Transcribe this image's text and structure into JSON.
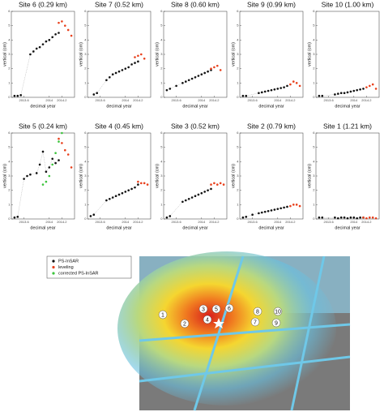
{
  "chart_data": [
    {
      "type": "scatter",
      "title": "Site 6 (0.29 km)",
      "xlabel": "decimal year",
      "ylabel": "vertical (cm)",
      "xlim": [
        2013.4,
        2014.4
      ],
      "ylim": [
        0,
        6
      ],
      "xticks": [
        2013.6,
        2014,
        2014.2
      ],
      "yticks": [
        0,
        1,
        2,
        3,
        4,
        5,
        6
      ],
      "series": [
        {
          "name": "PS-InSAR",
          "color": "#111111",
          "x": [
            2013.45,
            2013.5,
            2013.55,
            2013.7,
            2013.75,
            2013.8,
            2013.85,
            2013.9,
            2013.95,
            2014.0,
            2014.05,
            2014.1,
            2014.15
          ],
          "values": [
            0.1,
            0.1,
            0.15,
            3.0,
            3.2,
            3.4,
            3.5,
            3.7,
            3.9,
            4.0,
            4.2,
            4.4,
            4.5
          ]
        },
        {
          "name": "leveling",
          "color": "#e8401c",
          "x": [
            2014.15,
            2014.2,
            2014.25,
            2014.3,
            2014.35
          ],
          "values": [
            5.2,
            5.3,
            5.0,
            4.7,
            4.3
          ]
        }
      ]
    },
    {
      "type": "scatter",
      "title": "Site 7 (0.52 km)",
      "xlabel": "decimal year",
      "ylabel": "vertical (cm)",
      "xlim": [
        2013.4,
        2014.4
      ],
      "ylim": [
        0,
        6
      ],
      "xticks": [
        2013.6,
        2014,
        2014.2
      ],
      "yticks": [
        0,
        1,
        2,
        3,
        4,
        5,
        6
      ],
      "series": [
        {
          "name": "PS-InSAR",
          "color": "#111111",
          "x": [
            2013.5,
            2013.55,
            2013.7,
            2013.75,
            2013.8,
            2013.85,
            2013.9,
            2013.95,
            2014.0,
            2014.05,
            2014.1,
            2014.15,
            2014.2
          ],
          "values": [
            0.2,
            0.3,
            1.2,
            1.4,
            1.6,
            1.7,
            1.8,
            1.9,
            2.0,
            2.1,
            2.3,
            2.4,
            2.5
          ]
        },
        {
          "name": "leveling",
          "color": "#e8401c",
          "x": [
            2014.15,
            2014.2,
            2014.25,
            2014.3
          ],
          "values": [
            2.8,
            2.9,
            3.0,
            2.7
          ]
        }
      ]
    },
    {
      "type": "scatter",
      "title": "Site 8 (0.60 km)",
      "xlabel": "decimal year",
      "ylabel": "vertical (cm)",
      "xlim": [
        2013.4,
        2014.4
      ],
      "ylim": [
        0,
        6
      ],
      "xticks": [
        2013.6,
        2014,
        2014.2
      ],
      "yticks": [
        0,
        1,
        2,
        3,
        4,
        5,
        6
      ],
      "series": [
        {
          "name": "PS-InSAR",
          "color": "#111111",
          "x": [
            2013.45,
            2013.5,
            2013.6,
            2013.7,
            2013.75,
            2013.8,
            2013.85,
            2013.9,
            2013.95,
            2014.0,
            2014.05,
            2014.1,
            2014.15
          ],
          "values": [
            0.5,
            0.6,
            0.8,
            1.0,
            1.1,
            1.2,
            1.3,
            1.4,
            1.5,
            1.6,
            1.7,
            1.8,
            1.9
          ]
        },
        {
          "name": "leveling",
          "color": "#e8401c",
          "x": [
            2014.15,
            2014.2,
            2014.25,
            2014.3
          ],
          "values": [
            2.0,
            2.1,
            2.2,
            1.9
          ]
        }
      ]
    },
    {
      "type": "scatter",
      "title": "Site 9 (0.99 km)",
      "xlabel": "decimal year",
      "ylabel": "vertical (cm)",
      "xlim": [
        2013.4,
        2014.4
      ],
      "ylim": [
        0,
        6
      ],
      "xticks": [
        2013.6,
        2014,
        2014.2
      ],
      "yticks": [
        0,
        1,
        2,
        3,
        4,
        5,
        6
      ],
      "series": [
        {
          "name": "PS-InSAR",
          "color": "#111111",
          "x": [
            2013.45,
            2013.5,
            2013.7,
            2013.75,
            2013.8,
            2013.85,
            2013.9,
            2013.95,
            2014.0,
            2014.05,
            2014.1,
            2014.15
          ],
          "values": [
            0.1,
            0.1,
            0.3,
            0.35,
            0.4,
            0.45,
            0.5,
            0.55,
            0.6,
            0.65,
            0.7,
            0.8
          ]
        },
        {
          "name": "leveling",
          "color": "#e8401c",
          "x": [
            2014.2,
            2014.25,
            2014.3,
            2014.35
          ],
          "values": [
            0.9,
            1.1,
            1.0,
            0.8
          ]
        }
      ]
    },
    {
      "type": "scatter",
      "title": "Site 10 (1.00 km)",
      "xlabel": "decimal year",
      "ylabel": "vertical (cm)",
      "xlim": [
        2013.4,
        2014.4
      ],
      "ylim": [
        0,
        6
      ],
      "xticks": [
        2013.6,
        2014,
        2014.2
      ],
      "yticks": [
        0,
        1,
        2,
        3,
        4,
        5,
        6
      ],
      "series": [
        {
          "name": "PS-InSAR",
          "color": "#111111",
          "x": [
            2013.45,
            2013.5,
            2013.7,
            2013.75,
            2013.8,
            2013.85,
            2013.9,
            2013.95,
            2014.0,
            2014.05,
            2014.1,
            2014.15
          ],
          "values": [
            0.1,
            0.1,
            0.2,
            0.25,
            0.3,
            0.3,
            0.35,
            0.4,
            0.45,
            0.5,
            0.55,
            0.6
          ]
        },
        {
          "name": "leveling",
          "color": "#e8401c",
          "x": [
            2014.2,
            2014.25,
            2014.3,
            2014.35
          ],
          "values": [
            0.7,
            0.8,
            0.9,
            0.6
          ]
        }
      ]
    },
    {
      "type": "scatter",
      "title": "Site 5 (0.24 km)",
      "xlabel": "decimal year",
      "ylabel": "vertical (cm)",
      "xlim": [
        2013.4,
        2014.4
      ],
      "ylim": [
        0,
        6
      ],
      "xticks": [
        2013.6,
        2014,
        2014.2
      ],
      "yticks": [
        0,
        1,
        2,
        3,
        4,
        5,
        6
      ],
      "series": [
        {
          "name": "PS-InSAR",
          "color": "#111111",
          "x": [
            2013.45,
            2013.5,
            2013.6,
            2013.65,
            2013.7,
            2013.8,
            2013.85,
            2013.9,
            2013.95,
            2014.0,
            2014.05,
            2014.1,
            2014.15
          ],
          "values": [
            0.1,
            0.15,
            2.8,
            3.0,
            3.1,
            3.2,
            3.8,
            4.7,
            3.3,
            3.6,
            4.2,
            3.9,
            4.1
          ]
        },
        {
          "name": "leveling",
          "color": "#e8401c",
          "x": [
            2014.15,
            2014.2,
            2014.25,
            2014.3,
            2014.35
          ],
          "values": [
            5.6,
            5.3,
            4.8,
            4.5,
            3.6
          ]
        },
        {
          "name": "corrected PS-InSAR",
          "color": "#3cc43c",
          "x": [
            2013.9,
            2013.95,
            2014.0,
            2014.05,
            2014.1,
            2014.15,
            2014.2
          ],
          "values": [
            2.4,
            2.6,
            3.0,
            3.8,
            4.6,
            5.4,
            6.0
          ]
        }
      ]
    },
    {
      "type": "scatter",
      "title": "Site 4 (0.45 km)",
      "xlabel": "decimal year",
      "ylabel": "vertical (cm)",
      "xlim": [
        2013.4,
        2014.4
      ],
      "ylim": [
        0,
        6
      ],
      "xticks": [
        2013.6,
        2014,
        2014.2
      ],
      "yticks": [
        0,
        1,
        2,
        3,
        4,
        5,
        6
      ],
      "series": [
        {
          "name": "PS-InSAR",
          "color": "#111111",
          "x": [
            2013.45,
            2013.5,
            2013.7,
            2013.75,
            2013.8,
            2013.85,
            2013.9,
            2013.95,
            2014.0,
            2014.05,
            2014.1,
            2014.15,
            2014.2
          ],
          "values": [
            0.2,
            0.3,
            1.3,
            1.4,
            1.5,
            1.6,
            1.7,
            1.8,
            1.9,
            2.0,
            2.1,
            2.2,
            2.4
          ]
        },
        {
          "name": "leveling",
          "color": "#e8401c",
          "x": [
            2014.2,
            2014.25,
            2014.3,
            2014.35
          ],
          "values": [
            2.6,
            2.5,
            2.5,
            2.4
          ]
        }
      ]
    },
    {
      "type": "scatter",
      "title": "Site 3 (0.52 km)",
      "xlabel": "decimal year",
      "ylabel": "vertical (cm)",
      "xlim": [
        2013.4,
        2014.4
      ],
      "ylim": [
        0,
        6
      ],
      "xticks": [
        2013.6,
        2014,
        2014.2
      ],
      "yticks": [
        0,
        1,
        2,
        3,
        4,
        5,
        6
      ],
      "series": [
        {
          "name": "PS-InSAR",
          "color": "#111111",
          "x": [
            2013.45,
            2013.5,
            2013.7,
            2013.75,
            2013.8,
            2013.85,
            2013.9,
            2013.95,
            2014.0,
            2014.05,
            2014.1,
            2014.15
          ],
          "values": [
            0.1,
            0.2,
            1.2,
            1.3,
            1.4,
            1.5,
            1.6,
            1.7,
            1.8,
            1.9,
            2.0,
            2.1
          ]
        },
        {
          "name": "leveling",
          "color": "#e8401c",
          "x": [
            2014.15,
            2014.2,
            2014.25,
            2014.3,
            2014.35
          ],
          "values": [
            2.4,
            2.5,
            2.4,
            2.5,
            2.4
          ]
        }
      ]
    },
    {
      "type": "scatter",
      "title": "Site 2 (0.79 km)",
      "xlabel": "decimal year",
      "ylabel": "vertical (cm)",
      "xlim": [
        2013.4,
        2014.4
      ],
      "ylim": [
        0,
        6
      ],
      "xticks": [
        2013.6,
        2014,
        2014.2
      ],
      "yticks": [
        0,
        1,
        2,
        3,
        4,
        5,
        6
      ],
      "series": [
        {
          "name": "PS-InSAR",
          "color": "#111111",
          "x": [
            2013.45,
            2013.5,
            2013.6,
            2013.7,
            2013.75,
            2013.8,
            2013.85,
            2013.9,
            2013.95,
            2014.0,
            2014.05,
            2014.1,
            2014.15
          ],
          "values": [
            0.1,
            0.15,
            0.3,
            0.4,
            0.45,
            0.5,
            0.55,
            0.6,
            0.65,
            0.7,
            0.75,
            0.8,
            0.85
          ]
        },
        {
          "name": "leveling",
          "color": "#e8401c",
          "x": [
            2014.2,
            2014.25,
            2014.3,
            2014.35
          ],
          "values": [
            0.9,
            1.0,
            1.0,
            0.9
          ]
        }
      ]
    },
    {
      "type": "scatter",
      "title": "Site 1 (1.21 km)",
      "xlabel": "decimal year",
      "ylabel": "vertical (cm)",
      "xlim": [
        2013.4,
        2014.4
      ],
      "ylim": [
        0,
        6
      ],
      "xticks": [
        2013.6,
        2014,
        2014.2
      ],
      "yticks": [
        0,
        1,
        2,
        3,
        4,
        5,
        6
      ],
      "series": [
        {
          "name": "PS-InSAR",
          "color": "#111111",
          "x": [
            2013.45,
            2013.5,
            2013.7,
            2013.75,
            2013.8,
            2013.85,
            2013.9,
            2013.95,
            2014.0,
            2014.05,
            2014.1,
            2014.15
          ],
          "values": [
            0.1,
            0.1,
            0.1,
            0.05,
            0.1,
            0.1,
            0.05,
            0.1,
            0.1,
            0.05,
            0.1,
            0.1
          ]
        },
        {
          "name": "leveling",
          "color": "#e8401c",
          "x": [
            2014.15,
            2014.2,
            2014.25,
            2014.3,
            2014.35
          ],
          "values": [
            0.1,
            0.05,
            0.1,
            0.1,
            0.05
          ]
        }
      ]
    }
  ],
  "map": {
    "labels": [
      "1",
      "2",
      "3",
      "4",
      "5",
      "6",
      "7",
      "8",
      "9",
      "10"
    ]
  }
}
